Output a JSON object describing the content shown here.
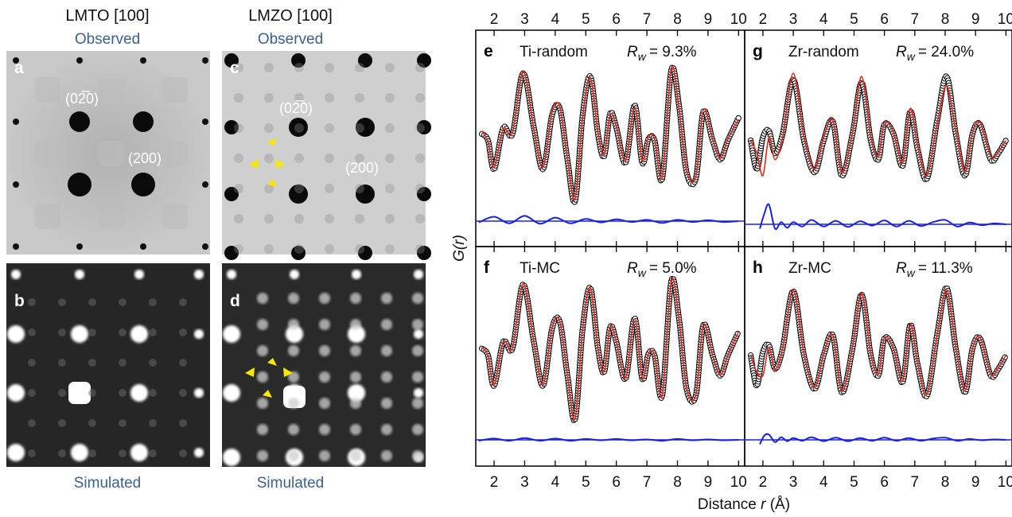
{
  "figure": {
    "left_columns": [
      {
        "title": "LMTO [100]",
        "top_label": "Observed",
        "bottom_label": "Simulated"
      },
      {
        "title": "LMZO [100]",
        "top_label": "Observed",
        "bottom_label": "Simulated"
      }
    ],
    "diffraction_panels": [
      {
        "letter": "a",
        "kind": "observed",
        "spot_labels": [
          "(0̅2̅0)",
          "(200)"
        ]
      },
      {
        "letter": "b",
        "kind": "simulated",
        "spot_labels": []
      },
      {
        "letter": "c",
        "kind": "observed",
        "spot_labels": [
          "(0̅2̅0)",
          "(200)"
        ]
      },
      {
        "letter": "d",
        "kind": "simulated",
        "spot_labels": []
      }
    ],
    "spot_label_text": {
      "a1": "(02̅0)",
      "a2": "(200)",
      "c1": "(02̅0)",
      "c2": "(200)"
    },
    "colors": {
      "data": "#000000",
      "fit": "#e3261b",
      "difference": "#1a22e0",
      "observed_bg": "#c9c9c9",
      "simulated_bg": "#2a2a2a",
      "annotation": "#f7e600"
    }
  },
  "chart_data": {
    "type": "line",
    "xlabel": "Distance r (Å)",
    "xlabel_parts": {
      "prefix": "Distance ",
      "var": "r",
      "suffix": " (Å)"
    },
    "ylabel": "G(r)",
    "ylabel_parts": {
      "main": "G(",
      "var": "r",
      "end": ")"
    },
    "x_ticks": [
      2,
      3,
      4,
      5,
      6,
      7,
      8,
      9,
      10
    ],
    "x_ticks_text": [
      "2",
      "3",
      "4",
      "5",
      "6",
      "7",
      "8",
      "9",
      "10"
    ],
    "xlim": [
      1.4,
      10.2
    ],
    "panels": [
      {
        "letter": "e",
        "name": "Ti-random",
        "rw": "= 9.3%",
        "series": [
          {
            "role": "data",
            "x": [
              1.6,
              1.8,
              2.0,
              2.3,
              2.6,
              2.95,
              3.3,
              3.6,
              3.9,
              4.15,
              4.4,
              4.65,
              4.9,
              5.15,
              5.4,
              5.6,
              5.8,
              6.0,
              6.3,
              6.6,
              6.85,
              7.05,
              7.25,
              7.5,
              7.8,
              8.05,
              8.3,
              8.6,
              8.85,
              9.15,
              9.4,
              9.65,
              10.0
            ],
            "y": [
              0.1,
              0.0,
              -0.45,
              0.2,
              0.1,
              1.05,
              0.2,
              -0.45,
              0.4,
              0.5,
              -0.3,
              -0.95,
              0.4,
              1.0,
              0.1,
              -0.25,
              0.42,
              0.2,
              -0.35,
              0.55,
              -0.35,
              0.02,
              0.0,
              -0.6,
              1.1,
              0.55,
              -0.5,
              -0.6,
              0.45,
              0.0,
              -0.3,
              0.0,
              0.35
            ]
          },
          {
            "role": "fit",
            "x": [
              1.6,
              1.8,
              2.0,
              2.3,
              2.6,
              2.95,
              3.3,
              3.6,
              3.9,
              4.15,
              4.4,
              4.65,
              4.9,
              5.15,
              5.4,
              5.6,
              5.8,
              6.0,
              6.3,
              6.6,
              6.85,
              7.05,
              7.25,
              7.5,
              7.8,
              8.05,
              8.3,
              8.6,
              8.85,
              9.15,
              9.4,
              9.65,
              10.0
            ],
            "y": [
              0.15,
              -0.02,
              -0.42,
              0.18,
              0.12,
              1.08,
              0.18,
              -0.42,
              0.45,
              0.52,
              -0.28,
              -0.92,
              0.38,
              0.98,
              0.12,
              -0.22,
              0.4,
              0.22,
              -0.32,
              0.52,
              -0.32,
              0.05,
              0.02,
              -0.58,
              1.12,
              0.5,
              -0.47,
              -0.57,
              0.48,
              0.02,
              -0.28,
              0.02,
              0.33
            ]
          },
          {
            "role": "difference",
            "x": [
              1.5,
              2.0,
              2.5,
              3.0,
              3.5,
              4.0,
              4.5,
              5.0,
              5.5,
              6.0,
              6.5,
              7.0,
              7.5,
              8.0,
              8.5,
              9.0,
              9.5,
              10.0
            ],
            "y": [
              -0.03,
              0.1,
              -0.05,
              0.12,
              -0.06,
              0.08,
              -0.05,
              0.05,
              -0.03,
              0.04,
              -0.02,
              0.03,
              -0.04,
              0.03,
              -0.02,
              0.02,
              -0.02,
              0.0
            ]
          }
        ]
      },
      {
        "letter": "g",
        "name": "Zr-random",
        "rw": "= 24.0%",
        "series": [
          {
            "role": "data",
            "x": [
              1.6,
              1.8,
              2.0,
              2.2,
              2.4,
              2.65,
              3.0,
              3.35,
              3.7,
              4.0,
              4.3,
              4.6,
              4.95,
              5.25,
              5.55,
              5.8,
              6.0,
              6.3,
              6.6,
              6.85,
              7.1,
              7.4,
              7.75,
              8.05,
              8.35,
              8.65,
              8.9,
              9.15,
              9.5,
              9.75,
              10.0
            ],
            "y": [
              0.0,
              -0.45,
              0.05,
              0.15,
              -0.2,
              0.1,
              0.95,
              0.0,
              -0.5,
              0.0,
              0.3,
              -0.55,
              0.1,
              0.9,
              0.0,
              -0.3,
              0.25,
              0.1,
              -0.4,
              0.45,
              -0.15,
              -0.6,
              0.35,
              1.0,
              0.1,
              -0.55,
              0.1,
              0.25,
              -0.3,
              -0.2,
              0.0
            ]
          },
          {
            "role": "fit",
            "x": [
              1.6,
              1.8,
              2.0,
              2.2,
              2.4,
              2.65,
              3.0,
              3.35,
              3.7,
              4.0,
              4.3,
              4.6,
              4.95,
              5.25,
              5.55,
              5.8,
              6.0,
              6.3,
              6.6,
              6.85,
              7.1,
              7.4,
              7.75,
              8.05,
              8.35,
              8.65,
              8.9,
              9.15,
              9.5,
              9.75,
              10.0
            ],
            "y": [
              0.0,
              -0.2,
              -0.55,
              0.05,
              -0.3,
              0.05,
              1.05,
              0.05,
              -0.45,
              0.05,
              0.32,
              -0.5,
              0.12,
              1.0,
              0.05,
              -0.25,
              0.28,
              0.12,
              -0.35,
              0.5,
              -0.1,
              -0.55,
              0.3,
              0.85,
              0.15,
              -0.5,
              0.12,
              0.28,
              -0.25,
              -0.18,
              0.0
            ]
          },
          {
            "role": "difference",
            "x": [
              1.9,
              2.05,
              2.2,
              2.4,
              2.6,
              2.8,
              3.0,
              3.3,
              3.6,
              4.0,
              4.4,
              4.8,
              5.2,
              5.6,
              6.0,
              6.4,
              6.8,
              7.2,
              7.6,
              8.0,
              8.4,
              8.8,
              9.2,
              9.6,
              10.0
            ],
            "y": [
              -0.1,
              0.25,
              0.45,
              -0.1,
              0.05,
              -0.08,
              0.05,
              -0.05,
              0.1,
              -0.05,
              0.08,
              -0.06,
              0.07,
              -0.03,
              0.09,
              -0.05,
              0.08,
              -0.04,
              0.05,
              0.1,
              -0.05,
              0.04,
              -0.02,
              0.02,
              0.0
            ]
          }
        ]
      },
      {
        "letter": "f",
        "name": "Ti-MC",
        "rw": "= 5.0%",
        "series": [
          {
            "role": "data",
            "x": [
              1.6,
              1.8,
              2.0,
              2.3,
              2.6,
              2.95,
              3.3,
              3.6,
              3.9,
              4.15,
              4.4,
              4.65,
              4.9,
              5.15,
              5.4,
              5.6,
              5.8,
              6.0,
              6.3,
              6.6,
              6.85,
              7.05,
              7.25,
              7.5,
              7.8,
              8.05,
              8.3,
              8.6,
              8.85,
              9.15,
              9.4,
              9.65,
              10.0
            ],
            "y": [
              0.1,
              0.0,
              -0.45,
              0.2,
              0.1,
              1.05,
              0.2,
              -0.45,
              0.4,
              0.5,
              -0.3,
              -0.95,
              0.4,
              1.0,
              0.1,
              -0.25,
              0.42,
              0.2,
              -0.35,
              0.55,
              -0.35,
              0.02,
              0.0,
              -0.6,
              1.1,
              0.55,
              -0.5,
              -0.6,
              0.45,
              0.0,
              -0.3,
              0.0,
              0.35
            ]
          },
          {
            "role": "fit",
            "x": [
              1.6,
              1.8,
              2.0,
              2.3,
              2.6,
              2.95,
              3.3,
              3.6,
              3.9,
              4.15,
              4.4,
              4.65,
              4.9,
              5.15,
              5.4,
              5.6,
              5.8,
              6.0,
              6.3,
              6.6,
              6.85,
              7.05,
              7.25,
              7.5,
              7.8,
              8.05,
              8.3,
              8.6,
              8.85,
              9.15,
              9.4,
              9.65,
              10.0
            ],
            "y": [
              0.12,
              0.0,
              -0.44,
              0.2,
              0.11,
              1.06,
              0.19,
              -0.44,
              0.41,
              0.5,
              -0.29,
              -0.94,
              0.4,
              1.0,
              0.1,
              -0.24,
              0.42,
              0.2,
              -0.34,
              0.54,
              -0.34,
              0.02,
              0.0,
              -0.59,
              1.1,
              0.54,
              -0.49,
              -0.59,
              0.45,
              0.0,
              -0.29,
              0.0,
              0.35
            ]
          },
          {
            "role": "difference",
            "x": [
              1.5,
              2.0,
              2.5,
              3.0,
              3.5,
              4.0,
              4.5,
              5.0,
              5.5,
              6.0,
              6.5,
              7.0,
              7.5,
              8.0,
              8.5,
              9.0,
              9.5,
              10.0
            ],
            "y": [
              -0.02,
              0.03,
              -0.02,
              0.04,
              -0.02,
              0.03,
              -0.02,
              0.02,
              -0.01,
              0.02,
              -0.01,
              0.01,
              -0.02,
              0.02,
              -0.01,
              0.01,
              -0.01,
              0.0
            ]
          }
        ]
      },
      {
        "letter": "h",
        "name": "Zr-MC",
        "rw": "= 11.3%",
        "series": [
          {
            "role": "data",
            "x": [
              1.6,
              1.8,
              2.0,
              2.2,
              2.4,
              2.65,
              3.0,
              3.35,
              3.7,
              4.0,
              4.3,
              4.6,
              4.95,
              5.25,
              5.55,
              5.8,
              6.0,
              6.3,
              6.6,
              6.85,
              7.1,
              7.4,
              7.75,
              8.05,
              8.35,
              8.65,
              8.9,
              9.15,
              9.5,
              9.75,
              10.0
            ],
            "y": [
              0.0,
              -0.45,
              0.05,
              0.15,
              -0.2,
              0.1,
              0.95,
              0.0,
              -0.5,
              0.0,
              0.3,
              -0.55,
              0.1,
              0.9,
              0.0,
              -0.3,
              0.25,
              0.1,
              -0.4,
              0.45,
              -0.15,
              -0.6,
              0.35,
              1.0,
              0.1,
              -0.55,
              0.1,
              0.25,
              -0.3,
              -0.2,
              0.0
            ]
          },
          {
            "role": "fit",
            "x": [
              1.6,
              1.8,
              2.0,
              2.2,
              2.4,
              2.65,
              3.0,
              3.35,
              3.7,
              4.0,
              4.3,
              4.6,
              4.95,
              5.25,
              5.55,
              5.8,
              6.0,
              6.3,
              6.6,
              6.85,
              7.1,
              7.4,
              7.75,
              8.05,
              8.35,
              8.65,
              8.9,
              9.15,
              9.5,
              9.75,
              10.0
            ],
            "y": [
              0.0,
              -0.25,
              -0.3,
              0.12,
              -0.22,
              0.1,
              0.97,
              0.02,
              -0.48,
              0.02,
              0.3,
              -0.53,
              0.12,
              0.92,
              0.02,
              -0.28,
              0.26,
              0.1,
              -0.38,
              0.46,
              -0.13,
              -0.58,
              0.34,
              0.97,
              0.12,
              -0.53,
              0.1,
              0.26,
              -0.28,
              -0.19,
              0.0
            ]
          },
          {
            "role": "difference",
            "x": [
              1.9,
              2.05,
              2.2,
              2.4,
              2.6,
              2.8,
              3.0,
              3.3,
              3.6,
              4.0,
              4.4,
              4.8,
              5.2,
              5.6,
              6.0,
              6.4,
              6.8,
              7.2,
              7.6,
              8.0,
              8.4,
              8.8,
              9.2,
              9.6,
              10.0
            ],
            "y": [
              -0.1,
              0.1,
              0.12,
              -0.05,
              0.06,
              -0.03,
              0.04,
              -0.02,
              0.06,
              -0.03,
              0.05,
              -0.03,
              0.04,
              -0.02,
              0.05,
              -0.02,
              0.04,
              -0.02,
              0.03,
              0.05,
              -0.02,
              0.02,
              -0.01,
              0.01,
              0.0
            ]
          }
        ]
      }
    ]
  }
}
